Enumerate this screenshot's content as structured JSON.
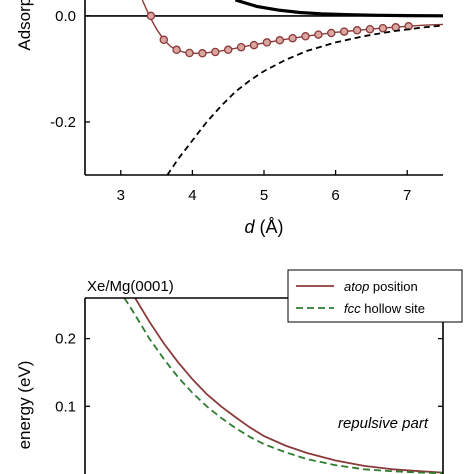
{
  "chart_data": [
    {
      "type": "line",
      "xlabel_var": "d",
      "xlabel_unit": " (Å)",
      "ylabel": "Adsorption",
      "xlim": [
        2.5,
        7.5
      ],
      "ylim": [
        -0.3,
        0.03
      ],
      "x_ticks": [
        3,
        4,
        5,
        6,
        7
      ],
      "y_ticks": [
        0.0,
        -0.2
      ],
      "y_tick_labels": [
        "0.0",
        "-0.2"
      ],
      "series": [
        {
          "style": "solid-thick-black",
          "x": [
            4.6,
            4.9,
            5.2,
            5.5,
            5.8,
            6.2,
            6.6,
            7.0,
            7.5
          ],
          "y": [
            0.03,
            0.018,
            0.011,
            0.0065,
            0.004,
            0.0022,
            0.0012,
            0.0006,
            0.0002
          ]
        },
        {
          "style": "solid-brown-with-markers",
          "x": [
            3.3,
            3.4,
            3.5,
            3.6,
            3.7,
            3.8,
            3.9,
            4.0,
            4.1,
            4.2,
            4.4,
            4.6,
            4.8,
            5.0,
            5.2,
            5.4,
            5.6,
            5.8,
            6.0,
            6.2,
            6.4,
            6.6,
            6.8,
            7.0,
            7.2,
            7.4,
            7.5
          ],
          "y": [
            0.03,
            0.0,
            -0.025,
            -0.045,
            -0.058,
            -0.065,
            -0.069,
            -0.0705,
            -0.0705,
            -0.0695,
            -0.066,
            -0.061,
            -0.056,
            -0.051,
            -0.0465,
            -0.042,
            -0.038,
            -0.0345,
            -0.031,
            -0.0285,
            -0.026,
            -0.0235,
            -0.0215,
            -0.0195,
            -0.0178,
            -0.0165,
            -0.016
          ],
          "marker_x": [
            3.42,
            3.6,
            3.78,
            3.96,
            4.14,
            4.32,
            4.5,
            4.68,
            4.86,
            5.04,
            5.22,
            5.4,
            5.58,
            5.76,
            5.94,
            6.12,
            6.3,
            6.48,
            6.66,
            6.84,
            7.02
          ],
          "marker_y": [
            0.0,
            -0.045,
            -0.064,
            -0.07,
            -0.0705,
            -0.068,
            -0.064,
            -0.059,
            -0.055,
            -0.05,
            -0.046,
            -0.042,
            -0.0385,
            -0.0352,
            -0.0322,
            -0.0296,
            -0.0272,
            -0.025,
            -0.0232,
            -0.0215,
            -0.0195
          ]
        },
        {
          "style": "dashed-black",
          "x": [
            3.65,
            3.8,
            4.0,
            4.2,
            4.4,
            4.6,
            4.8,
            5.0,
            5.3,
            5.6,
            6.0,
            6.4,
            6.8,
            7.2,
            7.5
          ],
          "y": [
            -0.3,
            -0.27,
            -0.235,
            -0.2,
            -0.17,
            -0.143,
            -0.122,
            -0.104,
            -0.083,
            -0.066,
            -0.05,
            -0.038,
            -0.029,
            -0.022,
            -0.018
          ]
        }
      ]
    },
    {
      "type": "line",
      "title": "Xe/Mg(0001)",
      "ylabel": "energy (eV)",
      "annotation": "repulsive part",
      "xlim": [
        2.5,
        7.5
      ],
      "ylim": [
        0.0,
        0.26
      ],
      "y_ticks": [
        0.2,
        0.1
      ],
      "y_tick_labels": [
        "0.2",
        "0.1"
      ],
      "legend": {
        "placement": "top-right"
      },
      "series": [
        {
          "name_italic": "atop",
          "name_rest": " position",
          "color": "#8B3A3A",
          "style": "solid",
          "x": [
            3.2,
            3.4,
            3.6,
            3.8,
            4.0,
            4.2,
            4.4,
            4.6,
            4.8,
            5.0,
            5.3,
            5.6,
            6.0,
            6.4,
            6.8,
            7.2,
            7.5
          ],
          "y": [
            0.26,
            0.225,
            0.193,
            0.165,
            0.14,
            0.118,
            0.1,
            0.084,
            0.069,
            0.056,
            0.042,
            0.031,
            0.02,
            0.012,
            0.007,
            0.004,
            0.002
          ]
        },
        {
          "name_italic": "fcc",
          "name_rest": " hollow site",
          "color": "#2E7D2E",
          "style": "dashed",
          "x": [
            3.05,
            3.2,
            3.4,
            3.6,
            3.8,
            4.0,
            4.2,
            4.4,
            4.6,
            4.8,
            5.0,
            5.3,
            5.6,
            6.0,
            6.4,
            6.8,
            7.2,
            7.5
          ],
          "y": [
            0.26,
            0.235,
            0.2,
            0.17,
            0.143,
            0.12,
            0.1,
            0.083,
            0.068,
            0.055,
            0.044,
            0.032,
            0.022,
            0.013,
            0.007,
            0.004,
            0.002,
            0.001
          ]
        }
      ]
    }
  ]
}
